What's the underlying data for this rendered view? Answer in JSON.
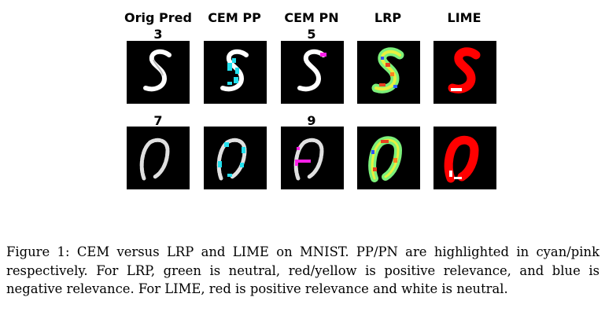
{
  "figure": {
    "columns": [
      "Orig Pred",
      "CEM PP",
      "CEM PN",
      "LRP",
      "LIME"
    ],
    "rows": [
      {
        "orig_pred": "3",
        "pn_pred": "5"
      },
      {
        "orig_pred": "7",
        "pn_pred": "9"
      }
    ],
    "legend_colors": {
      "pertinent_positive": "#22e0ee",
      "pertinent_negative": "#ff20e8",
      "lime_positive": "#ff0000",
      "lrp_neutral": "#7cf07a"
    }
  },
  "caption": "Figure 1: CEM versus LRP and LIME on MNIST. PP/PN are highlighted in cyan/pink respectively. For LRP, green is neutral, red/yellow is positive relevance, and blue is negative relevance. For LIME, red is positive relevance and white is neutral."
}
